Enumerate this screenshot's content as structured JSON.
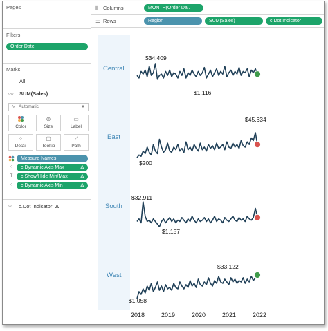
{
  "left": {
    "pages_title": "Pages",
    "filters_title": "Filters",
    "filter_pill": "Order Date",
    "marks_title": "Marks",
    "marks_all": "All",
    "marks_measure": "SUM(Sales)",
    "mark_type": "Automatic",
    "buttons": [
      {
        "label": "Color",
        "icon": "color-dots-icon"
      },
      {
        "label": "Size",
        "icon": "size-icon"
      },
      {
        "label": "Label",
        "icon": "label-icon"
      },
      {
        "label": "Detail",
        "icon": "detail-icon"
      },
      {
        "label": "Tooltip",
        "icon": "tooltip-icon"
      },
      {
        "label": "Path",
        "icon": "path-icon"
      }
    ],
    "fields": [
      {
        "label": "Measure Names",
        "color": "blue",
        "delta": ""
      },
      {
        "label": "c.Dynamic Axis Max",
        "color": "green",
        "delta": "Δ"
      },
      {
        "label": "c.Show/Hide Min/Max",
        "color": "green",
        "delta": "Δ"
      },
      {
        "label": "c.Dynamic Axis Min",
        "color": "green",
        "delta": "Δ"
      }
    ],
    "dot_indicator": "c.Dot Indicator",
    "dot_indicator_delta": "Δ"
  },
  "shelves": {
    "columns_label": "Columns",
    "columns_pill": "MONTH(Order Da..",
    "rows_label": "Rows",
    "rows_pills": [
      "Region",
      "SUM(Sales)",
      "c.Dot Indicator"
    ]
  },
  "chart_data": {
    "type": "line",
    "x_ticks": [
      "2018",
      "2019",
      "2020",
      "2021",
      "2022"
    ],
    "series": [
      {
        "name": "Central",
        "max_label": "$34,409",
        "min_label": "$1,116",
        "end_dot": "green",
        "values": [
          0.55,
          0.45,
          0.7,
          0.6,
          0.75,
          0.5,
          0.9,
          0.55,
          0.65,
          1.0,
          0.4,
          0.55,
          0.6,
          0.45,
          0.7,
          0.55,
          0.75,
          0.5,
          0.65,
          0.6,
          0.45,
          0.7,
          0.55,
          0.8,
          0.45,
          0.65,
          0.55,
          0.75,
          0.6,
          0.5,
          0.7,
          0.55,
          0.65,
          0.85,
          0.45,
          0.6,
          0.75,
          0.5,
          0.65,
          0.8,
          0.55,
          0.7,
          0.6,
          0.9,
          0.5,
          0.65,
          0.75,
          0.55,
          0.7,
          0.6,
          0.85,
          0.55,
          0.7,
          0.65,
          0.8,
          0.5,
          0.75,
          0.65,
          0.8,
          0.6
        ]
      },
      {
        "name": "East",
        "max_label": "$45,634",
        "min_label": "$200",
        "end_dot": "red",
        "values": [
          0.05,
          0.15,
          0.1,
          0.3,
          0.2,
          0.45,
          0.25,
          0.15,
          0.55,
          0.3,
          0.2,
          0.75,
          0.45,
          0.25,
          0.35,
          0.6,
          0.3,
          0.25,
          0.45,
          0.35,
          0.55,
          0.3,
          0.4,
          0.25,
          0.65,
          0.35,
          0.45,
          0.3,
          0.55,
          0.4,
          0.3,
          0.6,
          0.35,
          0.45,
          0.3,
          0.55,
          0.4,
          0.5,
          0.35,
          0.6,
          0.4,
          0.45,
          0.55,
          0.35,
          0.65,
          0.45,
          0.4,
          0.6,
          0.45,
          0.55,
          0.4,
          0.7,
          0.5,
          0.45,
          0.65,
          0.55,
          0.8,
          0.7,
          1.0,
          0.55
        ]
      },
      {
        "name": "South",
        "max_label": "$32,911",
        "min_label": "$1,157",
        "end_dot": "red",
        "values": [
          0.25,
          0.35,
          0.2,
          1.0,
          0.45,
          0.25,
          0.3,
          0.2,
          0.35,
          0.25,
          0.15,
          0.05,
          0.25,
          0.35,
          0.2,
          0.3,
          0.4,
          0.25,
          0.35,
          0.2,
          0.3,
          0.25,
          0.4,
          0.3,
          0.2,
          0.35,
          0.25,
          0.45,
          0.3,
          0.2,
          0.35,
          0.25,
          0.3,
          0.4,
          0.25,
          0.35,
          0.2,
          0.3,
          0.45,
          0.25,
          0.35,
          0.3,
          0.2,
          0.4,
          0.3,
          0.25,
          0.35,
          0.45,
          0.3,
          0.25,
          0.4,
          0.3,
          0.35,
          0.25,
          0.45,
          0.35,
          0.3,
          0.4,
          0.75,
          0.4
        ]
      },
      {
        "name": "West",
        "max_label": "$33,122",
        "min_label": "$1,058",
        "end_dot": "green",
        "values": [
          0.0,
          0.25,
          0.15,
          0.35,
          0.2,
          0.45,
          0.3,
          0.55,
          0.25,
          0.4,
          0.6,
          0.3,
          0.45,
          0.25,
          0.5,
          0.35,
          0.4,
          0.3,
          0.55,
          0.4,
          0.35,
          0.6,
          0.45,
          0.35,
          0.5,
          0.4,
          0.65,
          0.45,
          0.55,
          0.4,
          0.7,
          0.5,
          0.45,
          0.6,
          0.5,
          0.75,
          0.55,
          0.45,
          0.65,
          0.55,
          0.8,
          0.6,
          0.55,
          0.7,
          0.6,
          0.5,
          0.75,
          0.6,
          0.7,
          0.55,
          0.65,
          0.6,
          0.75,
          0.55,
          0.7,
          0.6,
          0.8,
          0.65,
          0.75,
          0.85
        ]
      }
    ],
    "line_color": "#1f3f57",
    "dot_colors": {
      "green": "#3f9a4a",
      "red": "#d9534f"
    }
  }
}
